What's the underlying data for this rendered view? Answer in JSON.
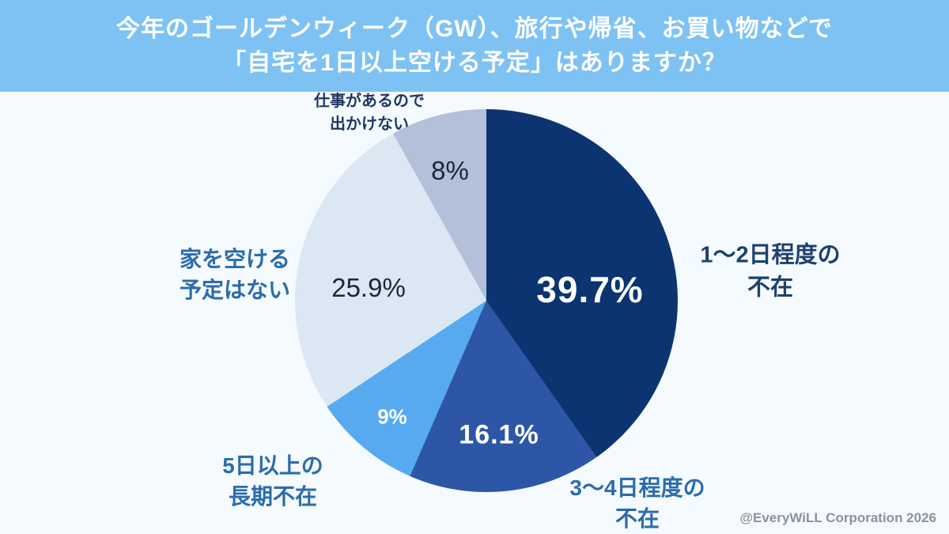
{
  "header": {
    "title_line1": "今年のゴールデンウィーク（GW）、旅行や帰省、お買い物などで",
    "title_line2": "「自宅を1日以上空ける予定」はありますか？",
    "background_color": "#7ec2f4",
    "text_color": "#ffffff"
  },
  "chart_data": {
    "type": "pie",
    "title": "今年のゴールデンウィーク（GW）、旅行や帰省、お買い物などで「自宅を1日以上空ける予定」はありますか？",
    "start_angle_deg": 0,
    "direction": "clockwise",
    "legend_position": "labels-around-pie",
    "slices": [
      {
        "label": "1〜2日程度の不在",
        "value": 39.7,
        "display": "39.7%",
        "color": "#0b3470",
        "value_text_color": "#ffffff"
      },
      {
        "label": "3〜4日程度の不在",
        "value": 16.1,
        "display": "16.1%",
        "color": "#2d56a6",
        "value_text_color": "#ffffff"
      },
      {
        "label": "5日以上の長期不在",
        "value": 9,
        "display": "9%",
        "color": "#57aaf0",
        "value_text_color": "#ffffff"
      },
      {
        "label": "家を空ける予定はない",
        "value": 25.9,
        "display": "25.9%",
        "color": "#dbe7f3",
        "value_text_color": "#1c2735"
      },
      {
        "label": "仕事があるので出かけない",
        "value": 8,
        "display": "8%",
        "color": "#b4bfda",
        "value_text_color": "#1c2735"
      }
    ]
  },
  "outside_labels": {
    "d12": {
      "line1": "1〜2日程度の",
      "line2": "不在"
    },
    "d34": {
      "line1": "3〜4日程度の",
      "line2": "不在"
    },
    "d5": {
      "line1": "5日以上の",
      "line2": "長期不在"
    },
    "stay": {
      "line1": "家を空ける",
      "line2": "予定はない"
    },
    "work": {
      "line1": "仕事があるので",
      "line2": "出かけない"
    }
  },
  "footer": {
    "credit": "@EveryWiLL Corporation 2026"
  },
  "page": {
    "background_color": "#f5fafe"
  }
}
